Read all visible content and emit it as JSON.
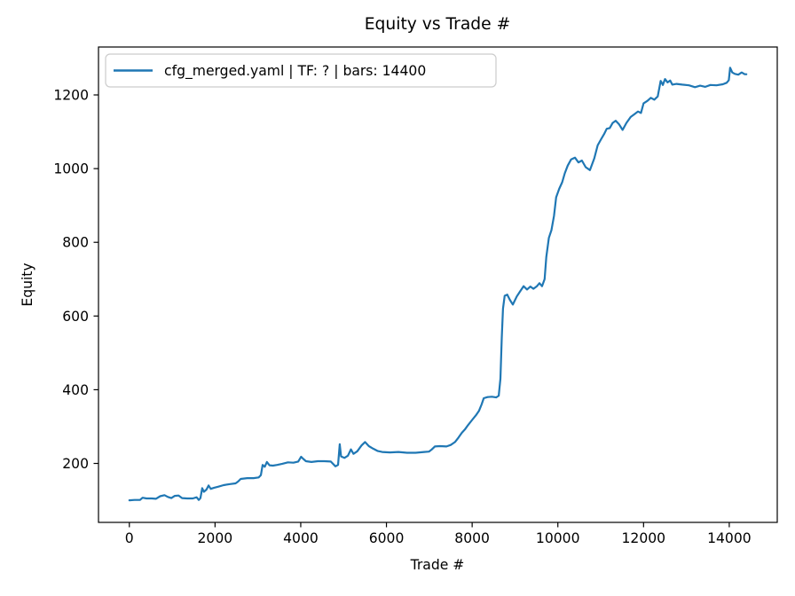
{
  "chart_data": {
    "type": "line",
    "title": "Equity vs Trade #",
    "xlabel": "Trade #",
    "ylabel": "Equity",
    "legend_label": "cfg_merged.yaml | TF: ? | bars: 14400",
    "legend_position": "upper left",
    "line_color": "#1f77b4",
    "background_color": "#ffffff",
    "spine_color": "#000000",
    "grid": false,
    "xlim": [
      -720,
      15120
    ],
    "ylim": [
      40,
      1330
    ],
    "x_ticks": [
      0,
      2000,
      4000,
      6000,
      8000,
      10000,
      12000,
      14000
    ],
    "y_ticks": [
      200,
      400,
      600,
      800,
      1000,
      1200
    ],
    "series": [
      {
        "name": "cfg_merged.yaml | TF: ? | bars: 14400",
        "points": [
          [
            0,
            100
          ],
          [
            120,
            101
          ],
          [
            250,
            101
          ],
          [
            310,
            107
          ],
          [
            400,
            105
          ],
          [
            520,
            105
          ],
          [
            620,
            104
          ],
          [
            720,
            111
          ],
          [
            820,
            114
          ],
          [
            900,
            109
          ],
          [
            980,
            106
          ],
          [
            1060,
            112
          ],
          [
            1150,
            113
          ],
          [
            1230,
            106
          ],
          [
            1350,
            105
          ],
          [
            1480,
            105
          ],
          [
            1570,
            108
          ],
          [
            1620,
            101
          ],
          [
            1660,
            106
          ],
          [
            1700,
            133
          ],
          [
            1740,
            123
          ],
          [
            1800,
            129
          ],
          [
            1850,
            140
          ],
          [
            1900,
            131
          ],
          [
            1980,
            134
          ],
          [
            2080,
            137
          ],
          [
            2200,
            141
          ],
          [
            2350,
            144
          ],
          [
            2480,
            146
          ],
          [
            2540,
            151
          ],
          [
            2600,
            158
          ],
          [
            2750,
            160
          ],
          [
            2900,
            160
          ],
          [
            3020,
            162
          ],
          [
            3070,
            168
          ],
          [
            3110,
            196
          ],
          [
            3160,
            191
          ],
          [
            3210,
            204
          ],
          [
            3270,
            195
          ],
          [
            3350,
            194
          ],
          [
            3450,
            196
          ],
          [
            3570,
            199
          ],
          [
            3700,
            203
          ],
          [
            3830,
            202
          ],
          [
            3940,
            205
          ],
          [
            4010,
            218
          ],
          [
            4060,
            212
          ],
          [
            4120,
            206
          ],
          [
            4250,
            204
          ],
          [
            4400,
            206
          ],
          [
            4550,
            206
          ],
          [
            4700,
            205
          ],
          [
            4810,
            192
          ],
          [
            4870,
            196
          ],
          [
            4910,
            252
          ],
          [
            4940,
            219
          ],
          [
            5020,
            215
          ],
          [
            5100,
            221
          ],
          [
            5170,
            238
          ],
          [
            5230,
            226
          ],
          [
            5320,
            233
          ],
          [
            5420,
            249
          ],
          [
            5500,
            258
          ],
          [
            5590,
            247
          ],
          [
            5690,
            240
          ],
          [
            5790,
            234
          ],
          [
            5900,
            231
          ],
          [
            6080,
            230
          ],
          [
            6280,
            231
          ],
          [
            6480,
            229
          ],
          [
            6680,
            229
          ],
          [
            6880,
            231
          ],
          [
            6990,
            232
          ],
          [
            7060,
            238
          ],
          [
            7130,
            246
          ],
          [
            7250,
            247
          ],
          [
            7400,
            246
          ],
          [
            7500,
            250
          ],
          [
            7600,
            258
          ],
          [
            7680,
            270
          ],
          [
            7760,
            283
          ],
          [
            7830,
            292
          ],
          [
            7910,
            305
          ],
          [
            8000,
            318
          ],
          [
            8090,
            331
          ],
          [
            8160,
            343
          ],
          [
            8220,
            360
          ],
          [
            8270,
            377
          ],
          [
            8360,
            380
          ],
          [
            8460,
            381
          ],
          [
            8560,
            379
          ],
          [
            8620,
            384
          ],
          [
            8660,
            430
          ],
          [
            8690,
            540
          ],
          [
            8720,
            620
          ],
          [
            8760,
            655
          ],
          [
            8820,
            658
          ],
          [
            8880,
            644
          ],
          [
            8950,
            631
          ],
          [
            9040,
            653
          ],
          [
            9120,
            667
          ],
          [
            9200,
            681
          ],
          [
            9280,
            672
          ],
          [
            9360,
            680
          ],
          [
            9430,
            674
          ],
          [
            9510,
            681
          ],
          [
            9570,
            689
          ],
          [
            9630,
            681
          ],
          [
            9690,
            700
          ],
          [
            9730,
            760
          ],
          [
            9790,
            812
          ],
          [
            9850,
            833
          ],
          [
            9910,
            872
          ],
          [
            9960,
            922
          ],
          [
            10030,
            945
          ],
          [
            10100,
            963
          ],
          [
            10160,
            987
          ],
          [
            10230,
            1008
          ],
          [
            10310,
            1025
          ],
          [
            10400,
            1030
          ],
          [
            10480,
            1017
          ],
          [
            10560,
            1022
          ],
          [
            10650,
            1004
          ],
          [
            10750,
            996
          ],
          [
            10850,
            1028
          ],
          [
            10930,
            1063
          ],
          [
            11010,
            1080
          ],
          [
            11080,
            1094
          ],
          [
            11140,
            1108
          ],
          [
            11210,
            1110
          ],
          [
            11280,
            1124
          ],
          [
            11350,
            1130
          ],
          [
            11430,
            1120
          ],
          [
            11510,
            1105
          ],
          [
            11600,
            1124
          ],
          [
            11700,
            1140
          ],
          [
            11790,
            1148
          ],
          [
            11870,
            1155
          ],
          [
            11940,
            1151
          ],
          [
            12000,
            1177
          ],
          [
            12090,
            1184
          ],
          [
            12170,
            1192
          ],
          [
            12250,
            1187
          ],
          [
            12330,
            1196
          ],
          [
            12400,
            1238
          ],
          [
            12450,
            1227
          ],
          [
            12500,
            1243
          ],
          [
            12560,
            1234
          ],
          [
            12620,
            1239
          ],
          [
            12670,
            1228
          ],
          [
            12770,
            1230
          ],
          [
            12900,
            1228
          ],
          [
            13060,
            1226
          ],
          [
            13200,
            1221
          ],
          [
            13320,
            1225
          ],
          [
            13440,
            1222
          ],
          [
            13560,
            1227
          ],
          [
            13700,
            1226
          ],
          [
            13850,
            1229
          ],
          [
            13940,
            1233
          ],
          [
            13990,
            1240
          ],
          [
            14020,
            1274
          ],
          [
            14070,
            1261
          ],
          [
            14130,
            1257
          ],
          [
            14210,
            1255
          ],
          [
            14290,
            1261
          ],
          [
            14360,
            1256
          ],
          [
            14400,
            1256
          ]
        ]
      }
    ]
  }
}
